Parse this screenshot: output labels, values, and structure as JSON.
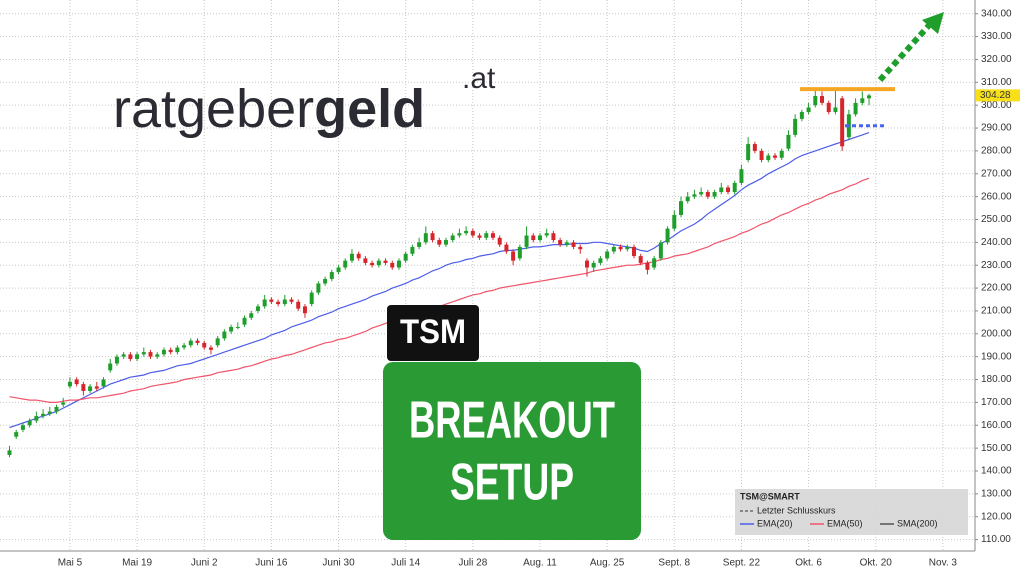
{
  "chart_data": {
    "type": "candlestick",
    "logo": {
      "light": "ratgeber",
      "bold": "geld",
      "suffix": ".at"
    },
    "badge": "TSM",
    "headline": [
      "BREAKOUT",
      "SETUP"
    ],
    "up_color": "#1f9e2c",
    "down_color": "#d7262b",
    "ylim": [
      105,
      346
    ],
    "yticks": [
      {
        "value": 110,
        "label": "110.00"
      },
      {
        "value": 120,
        "label": "120.00"
      },
      {
        "value": 130,
        "label": "130.00"
      },
      {
        "value": 140,
        "label": "140.00"
      },
      {
        "value": 150,
        "label": "150.00"
      },
      {
        "value": 160,
        "label": "160.00"
      },
      {
        "value": 170,
        "label": "170.00"
      },
      {
        "value": 180,
        "label": "180.00"
      },
      {
        "value": 190,
        "label": "190.00"
      },
      {
        "value": 200,
        "label": "200.00"
      },
      {
        "value": 210,
        "label": "210.00"
      },
      {
        "value": 220,
        "label": "220.00"
      },
      {
        "value": 230,
        "label": "230.00"
      },
      {
        "value": 240,
        "label": "240.00"
      },
      {
        "value": 250,
        "label": "250.00"
      },
      {
        "value": 260,
        "label": "260.00"
      },
      {
        "value": 270,
        "label": "270.00"
      },
      {
        "value": 280,
        "label": "280.00"
      },
      {
        "value": 290,
        "label": "290.00"
      },
      {
        "value": 300,
        "label": "300.00"
      },
      {
        "value": 310,
        "label": "310.00"
      },
      {
        "value": 320,
        "label": "320.00"
      },
      {
        "value": 330,
        "label": "330.00"
      },
      {
        "value": 340,
        "label": "340.00"
      }
    ],
    "grid": true,
    "categories": [
      null,
      null,
      null,
      null,
      null,
      null,
      null,
      null,
      null,
      "Mai 5",
      null,
      null,
      null,
      null,
      null,
      null,
      null,
      null,
      null,
      "Mai 19",
      null,
      null,
      null,
      null,
      null,
      null,
      null,
      null,
      null,
      "Juni 2",
      null,
      null,
      null,
      null,
      null,
      null,
      null,
      null,
      null,
      "Juni 16",
      null,
      null,
      null,
      null,
      null,
      null,
      null,
      null,
      null,
      "Juni 30",
      null,
      null,
      null,
      null,
      null,
      null,
      null,
      null,
      null,
      "Juli 14",
      null,
      null,
      null,
      null,
      null,
      null,
      null,
      null,
      null,
      "Juli 28",
      null,
      null,
      null,
      null,
      null,
      null,
      null,
      null,
      null,
      "Aug. 11",
      null,
      null,
      null,
      null,
      null,
      null,
      null,
      null,
      null,
      "Aug. 25",
      null,
      null,
      null,
      null,
      null,
      null,
      null,
      null,
      null,
      "Sept. 8",
      null,
      null,
      null,
      null,
      null,
      null,
      null,
      null,
      null,
      "Sept. 22",
      null,
      null,
      null,
      null,
      null,
      null,
      null,
      null,
      null,
      "Okt. 6",
      null,
      null,
      null,
      null,
      null,
      null,
      null,
      null,
      null,
      "Okt. 20",
      null,
      null,
      null,
      null,
      null,
      null,
      null,
      null,
      null,
      "Nov. 3",
      null,
      null,
      null,
      null
    ],
    "candles": [
      [
        147,
        151,
        146,
        149
      ],
      [
        155,
        158,
        154,
        157
      ],
      [
        158,
        161,
        157,
        160
      ],
      [
        160,
        163,
        159,
        162
      ],
      [
        162,
        166,
        161,
        164
      ],
      [
        164,
        167,
        163,
        165
      ],
      [
        165,
        168,
        164,
        166
      ],
      [
        166,
        169,
        165,
        168
      ],
      [
        169,
        172,
        168,
        170
      ],
      [
        177,
        181,
        176,
        179
      ],
      [
        180,
        181,
        177,
        178
      ],
      [
        178,
        179,
        173,
        175
      ],
      [
        175,
        178,
        174,
        177
      ],
      [
        177,
        179,
        175,
        176
      ],
      [
        177,
        181,
        176,
        180
      ],
      [
        184,
        189,
        183,
        187
      ],
      [
        187,
        191,
        186,
        190
      ],
      [
        190,
        192,
        189,
        191
      ],
      [
        191,
        192,
        188,
        189
      ],
      [
        189,
        192,
        188,
        191
      ],
      [
        191,
        194,
        190,
        192
      ],
      [
        192,
        193,
        189,
        190
      ],
      [
        190,
        192,
        189,
        191
      ],
      [
        191,
        194,
        190,
        193
      ],
      [
        193,
        194,
        191,
        192
      ],
      [
        192,
        195,
        191,
        194
      ],
      [
        194,
        196,
        193,
        195
      ],
      [
        195,
        198,
        194,
        197
      ],
      [
        197,
        198,
        195,
        196
      ],
      [
        196,
        197,
        193,
        194
      ],
      [
        194,
        195,
        191,
        193
      ],
      [
        195,
        199,
        194,
        198
      ],
      [
        198,
        202,
        197,
        201
      ],
      [
        201,
        204,
        200,
        203
      ],
      [
        203,
        205,
        202,
        203
      ],
      [
        204,
        208,
        203,
        207
      ],
      [
        207,
        210,
        206,
        209
      ],
      [
        210,
        213,
        209,
        212
      ],
      [
        212,
        217,
        211,
        215
      ],
      [
        215,
        216,
        213,
        214
      ],
      [
        214,
        215,
        212,
        213
      ],
      [
        213,
        217,
        212,
        215
      ],
      [
        215,
        216,
        213,
        214
      ],
      [
        214,
        215,
        210,
        211
      ],
      [
        212,
        213,
        207,
        209
      ],
      [
        213,
        219,
        212,
        218
      ],
      [
        218,
        223,
        217,
        222
      ],
      [
        222,
        225,
        221,
        224
      ],
      [
        224,
        228,
        223,
        227
      ],
      [
        227,
        230,
        226,
        229
      ],
      [
        229,
        233,
        228,
        232
      ],
      [
        232,
        237,
        231,
        235
      ],
      [
        235,
        236,
        232,
        233
      ],
      [
        233,
        234,
        230,
        231
      ],
      [
        231,
        232,
        229,
        230
      ],
      [
        230,
        233,
        229,
        232
      ],
      [
        232,
        233,
        230,
        231
      ],
      [
        231,
        232,
        228,
        229
      ],
      [
        229,
        233,
        228,
        232
      ],
      [
        232,
        236,
        231,
        235
      ],
      [
        235,
        239,
        234,
        238
      ],
      [
        238,
        242,
        237,
        240
      ],
      [
        240,
        247,
        239,
        244
      ],
      [
        244,
        245,
        240,
        241
      ],
      [
        241,
        242,
        238,
        239
      ],
      [
        239,
        242,
        238,
        241
      ],
      [
        241,
        244,
        240,
        243
      ],
      [
        243,
        246,
        242,
        244
      ],
      [
        244,
        247,
        243,
        245
      ],
      [
        245,
        246,
        242,
        243
      ],
      [
        243,
        244,
        241,
        242
      ],
      [
        242,
        245,
        241,
        244
      ],
      [
        244,
        245,
        241,
        242
      ],
      [
        242,
        243,
        238,
        239
      ],
      [
        239,
        240,
        235,
        236
      ],
      [
        236,
        237,
        230,
        232
      ],
      [
        233,
        239,
        232,
        238
      ],
      [
        238,
        247,
        237,
        243
      ],
      [
        243,
        244,
        240,
        241
      ],
      [
        241,
        244,
        240,
        243
      ],
      [
        243,
        246,
        242,
        244
      ],
      [
        244,
        245,
        240,
        241
      ],
      [
        241,
        242,
        238,
        239
      ],
      [
        239,
        241,
        238,
        240
      ],
      [
        240,
        241,
        237,
        238
      ],
      [
        238,
        239,
        235,
        237
      ],
      [
        232,
        233,
        225,
        229
      ],
      [
        229,
        232,
        227,
        231
      ],
      [
        231,
        234,
        230,
        233
      ],
      [
        233,
        237,
        232,
        236
      ],
      [
        236,
        239,
        235,
        238
      ],
      [
        238,
        239,
        236,
        237
      ],
      [
        237,
        239,
        236,
        238
      ],
      [
        238,
        239,
        233,
        234
      ],
      [
        234,
        235,
        230,
        231
      ],
      [
        231,
        232,
        226,
        228
      ],
      [
        229,
        234,
        228,
        233
      ],
      [
        233,
        241,
        232,
        240
      ],
      [
        240,
        247,
        239,
        246
      ],
      [
        246,
        254,
        245,
        252
      ],
      [
        252,
        260,
        251,
        258
      ],
      [
        258,
        262,
        257,
        260
      ],
      [
        260,
        263,
        259,
        261
      ],
      [
        261,
        264,
        260,
        262
      ],
      [
        262,
        263,
        259,
        260
      ],
      [
        260,
        263,
        259,
        262
      ],
      [
        262,
        266,
        261,
        264
      ],
      [
        264,
        265,
        261,
        262
      ],
      [
        262,
        267,
        261,
        266
      ],
      [
        266,
        274,
        265,
        272
      ],
      [
        276,
        286,
        275,
        283
      ],
      [
        283,
        284,
        279,
        280
      ],
      [
        280,
        281,
        275,
        276
      ],
      [
        276,
        279,
        275,
        278
      ],
      [
        278,
        279,
        276,
        277
      ],
      [
        277,
        281,
        276,
        280
      ],
      [
        281,
        289,
        280,
        287
      ],
      [
        287,
        296,
        286,
        294
      ],
      [
        294,
        298,
        293,
        297
      ],
      [
        297,
        301,
        296,
        299
      ],
      [
        300,
        307,
        299,
        304
      ],
      [
        304,
        306,
        300,
        301
      ],
      [
        301,
        302,
        296,
        297
      ],
      [
        297,
        307,
        296,
        299
      ],
      [
        303,
        304,
        280,
        282
      ],
      [
        286,
        298,
        285,
        296
      ],
      [
        296,
        303,
        295,
        301
      ],
      [
        301,
        306,
        300,
        303
      ],
      [
        303,
        305,
        300,
        304.28
      ],
      null,
      null,
      null,
      null,
      null,
      null,
      null,
      null,
      null,
      null,
      null,
      null,
      null,
      null,
      null
    ],
    "series": [
      {
        "name": "EMA(20)",
        "color": "#4d5ee8",
        "values": [
          159,
          160,
          161,
          162,
          163,
          164,
          165,
          166,
          167.5,
          169,
          170.5,
          172,
          173.5,
          175,
          176.5,
          178,
          179,
          180,
          181,
          181.5,
          182,
          183,
          183.5,
          184,
          185,
          186,
          186.5,
          187,
          188,
          189,
          190,
          191,
          192,
          193,
          194,
          195,
          196,
          197,
          198,
          199.5,
          200.5,
          201.5,
          203,
          204,
          205,
          206,
          207.5,
          208.5,
          209.5,
          211,
          212,
          213,
          214,
          215,
          216.5,
          217.5,
          218.5,
          220,
          221,
          222,
          223.5,
          224.5,
          226,
          227.5,
          228.5,
          230,
          231,
          231.5,
          232.5,
          233,
          234,
          234.5,
          235,
          236,
          236.5,
          236.5,
          237,
          237.5,
          238,
          238,
          238.5,
          239,
          239,
          239,
          239.5,
          239.5,
          239.5,
          240,
          240,
          239.5,
          239,
          238.5,
          238,
          237.5,
          236.5,
          236,
          237.5,
          239.5,
          241,
          243,
          245,
          246.5,
          248,
          250,
          252.5,
          254.5,
          256.5,
          258.5,
          260.5,
          263,
          265,
          266.5,
          268,
          270,
          271.5,
          273,
          274.5,
          276.5,
          278,
          279,
          280,
          281,
          282,
          283,
          284,
          285,
          286,
          287,
          288,
          null,
          null,
          null,
          null,
          null,
          null,
          null,
          null,
          null,
          null,
          null,
          null,
          null,
          null,
          null
        ]
      },
      {
        "name": "EMA(50)",
        "color": "#f0556a",
        "values": [
          172.5,
          172,
          171.5,
          171,
          171,
          170.5,
          170,
          170,
          170.5,
          171,
          171,
          171.5,
          172,
          172,
          172.5,
          173,
          173.5,
          174,
          175,
          175.5,
          176,
          177,
          177.5,
          178,
          178.5,
          179,
          180,
          180.5,
          181,
          181.5,
          182,
          183,
          183.5,
          184,
          184.5,
          185.5,
          186,
          187,
          188,
          189,
          189.5,
          190.5,
          191,
          192,
          193,
          194,
          195,
          196,
          196.5,
          197.5,
          198,
          199,
          200,
          201,
          202.5,
          203.5,
          204.5,
          206,
          207,
          208,
          209,
          209.5,
          210.5,
          211,
          212,
          213,
          214,
          215,
          216,
          217,
          217.5,
          218.5,
          219,
          220,
          220.5,
          221,
          221.5,
          222,
          222.5,
          223,
          223.5,
          224,
          224.5,
          225,
          225.5,
          226,
          226.5,
          227.5,
          228,
          228.5,
          229,
          229.5,
          230,
          230,
          230.5,
          231,
          231.5,
          232.5,
          233,
          234,
          234.5,
          235,
          236,
          237,
          238,
          239.5,
          240.5,
          241.5,
          242.5,
          244,
          245,
          246.5,
          248,
          249,
          250.5,
          252,
          253,
          254.5,
          256,
          257,
          258.5,
          259.5,
          261,
          262,
          263,
          264.5,
          265.5,
          267,
          268,
          null,
          null,
          null,
          null,
          null,
          null,
          null,
          null,
          null,
          null,
          null,
          null,
          null,
          null,
          null
        ]
      }
    ],
    "levels": [
      {
        "value": 307,
        "color": "#f5a623"
      },
      {
        "value": 291,
        "color": "#4a63f0"
      }
    ],
    "legend": {
      "title": "TSM@SMART",
      "last_close": "Letzter Schlusskurs",
      "extra": [
        {
          "name": "SMA(200)",
          "color": "#555555"
        }
      ]
    }
  }
}
